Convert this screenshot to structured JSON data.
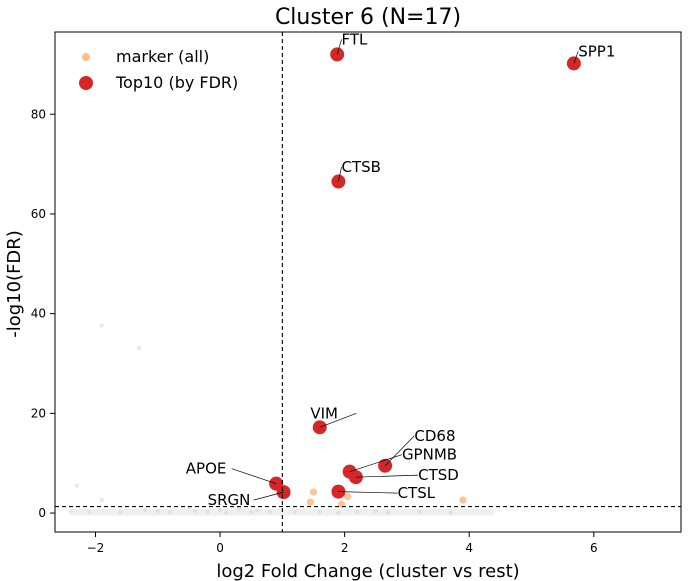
{
  "chart_data": {
    "type": "scatter",
    "title": "Cluster 6 (N=17)",
    "xlabel": "log2 Fold Change (cluster vs rest)",
    "ylabel": "-log10(FDR)",
    "xlim": [
      -2.65,
      7.4
    ],
    "ylim": [
      -3.8,
      96.5
    ],
    "x_ticks": [
      -2,
      0,
      2,
      4,
      6
    ],
    "y_ticks": [
      0,
      20,
      40,
      60,
      80
    ],
    "thresholds": {
      "x": 1,
      "y": 1.3
    },
    "legend": {
      "position": "top-left",
      "entries": [
        "marker (all)",
        "Top10 (by FDR)"
      ]
    },
    "colors": {
      "background_points": "#d3d3d3",
      "marker": "#fdbe8c",
      "top10": "#d62728"
    },
    "series": [
      {
        "name": "",
        "role": "background",
        "points": [
          {
            "x": -1.9,
            "y": 37.6
          },
          {
            "x": -1.3,
            "y": 33.1
          },
          {
            "x": -2.3,
            "y": 5.5
          },
          {
            "x": -1.9,
            "y": 2.6
          },
          {
            "x": -0.5,
            "y": 1.1
          },
          {
            "x": 0.3,
            "y": 0.9
          },
          {
            "x": -1.2,
            "y": 0.6
          },
          {
            "x": -0.2,
            "y": 0.3
          },
          {
            "x": 0.6,
            "y": 0.5
          },
          {
            "x": -2.1,
            "y": 0.2
          },
          {
            "x": -1.6,
            "y": 0.1
          },
          {
            "x": -0.8,
            "y": 0.2
          },
          {
            "x": -0.4,
            "y": 0.4
          },
          {
            "x": 0.1,
            "y": 0.1
          },
          {
            "x": 0.5,
            "y": 0.2
          },
          {
            "x": 0.8,
            "y": 0.3
          },
          {
            "x": 1.2,
            "y": 0.2
          },
          {
            "x": 1.6,
            "y": 0.3
          },
          {
            "x": 2.2,
            "y": 0.2
          },
          {
            "x": 2.7,
            "y": 0.1
          },
          {
            "x": 3.2,
            "y": 0.3
          },
          {
            "x": 3.7,
            "y": 0.1
          },
          {
            "x": -1.0,
            "y": 0.4
          },
          {
            "x": 1.9,
            "y": 0.1
          },
          {
            "x": 2.5,
            "y": 0.4
          },
          {
            "x": -2.4,
            "y": 0.3
          },
          {
            "x": 0.0,
            "y": 0.6
          }
        ]
      },
      {
        "name": "marker (all)",
        "role": "marker",
        "points": [
          {
            "x": 3.9,
            "y": 2.6
          },
          {
            "x": 1.5,
            "y": 4.2
          },
          {
            "x": 2.05,
            "y": 3.3
          },
          {
            "x": 1.45,
            "y": 2.2
          },
          {
            "x": 1.95,
            "y": 1.8
          }
        ]
      },
      {
        "name": "Top10 (by FDR)",
        "role": "top10",
        "points": [
          {
            "x": 1.88,
            "y": 92.0,
            "label": "FTL"
          },
          {
            "x": 5.68,
            "y": 90.2,
            "label": "SPP1"
          },
          {
            "x": 1.9,
            "y": 66.5,
            "label": "CTSB"
          },
          {
            "x": 1.6,
            "y": 17.2,
            "label": "VIM"
          },
          {
            "x": 2.65,
            "y": 9.5,
            "label": "CD68"
          },
          {
            "x": 2.08,
            "y": 8.3,
            "label": "GPNMB"
          },
          {
            "x": 2.18,
            "y": 7.2,
            "label": "CTSD"
          },
          {
            "x": 0.9,
            "y": 5.9,
            "label": "APOE"
          },
          {
            "x": 1.9,
            "y": 4.3,
            "label": "CTSL"
          },
          {
            "x": 1.02,
            "y": 4.2,
            "label": "SRGN"
          }
        ]
      }
    ],
    "annotations": [
      {
        "text": "FTL",
        "x": 1.95,
        "y": 94.0
      },
      {
        "text": "SPP1",
        "x": 5.75,
        "y": 91.6
      },
      {
        "text": "CTSB",
        "x": 1.95,
        "y": 68.4
      },
      {
        "text": "VIM",
        "x": 1.45,
        "y": 19.0
      },
      {
        "text": "CD68",
        "x": 3.12,
        "y": 14.5
      },
      {
        "text": "GPNMB",
        "x": 2.92,
        "y": 10.7
      },
      {
        "text": "CTSD",
        "x": 3.18,
        "y": 6.6
      },
      {
        "text": "APOE",
        "x": -0.55,
        "y": 7.9
      },
      {
        "text": "CTSL",
        "x": 2.85,
        "y": 3.0
      },
      {
        "text": "SRGN",
        "x": -0.2,
        "y": 1.6
      }
    ]
  }
}
